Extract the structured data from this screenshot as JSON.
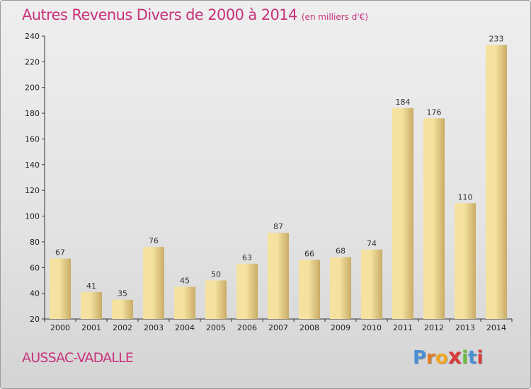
{
  "header": {
    "title": "Autres Revenus Divers de 2000 à 2014",
    "unit": "(en milliers d'€)"
  },
  "footer": {
    "commune": "AUSSAC-VADALLE",
    "brand_letters": [
      "P",
      "r",
      "o",
      "x",
      "i",
      "t",
      "i"
    ],
    "brand_colors": [
      "#4a8fd4",
      "#e07b1f",
      "#f2a81d",
      "#d83a3a",
      "#6aba3a",
      "#4a8fd4",
      "#d83a3a"
    ]
  },
  "colors": {
    "title": "#c8327a",
    "bar_light": "#f5e2a0",
    "bar_dark": "#c9ac66",
    "axis": "#333333",
    "grid": "#ffffff"
  },
  "chart_data": {
    "type": "bar",
    "title": "Autres Revenus Divers de 2000 à 2014",
    "subtitle": "(en milliers d'€)",
    "xlabel": "",
    "ylabel": "",
    "categories": [
      "2000",
      "2001",
      "2002",
      "2003",
      "2004",
      "2005",
      "2006",
      "2007",
      "2008",
      "2009",
      "2010",
      "2011",
      "2012",
      "2013",
      "2014"
    ],
    "values": [
      67,
      41,
      35,
      76,
      45,
      50,
      63,
      87,
      66,
      68,
      74,
      184,
      176,
      110,
      233
    ],
    "ylim": [
      20,
      240
    ],
    "yticks": [
      20,
      40,
      60,
      80,
      100,
      120,
      140,
      160,
      180,
      200,
      220,
      240
    ],
    "grid": false,
    "legend": "none",
    "data_labels": true
  }
}
